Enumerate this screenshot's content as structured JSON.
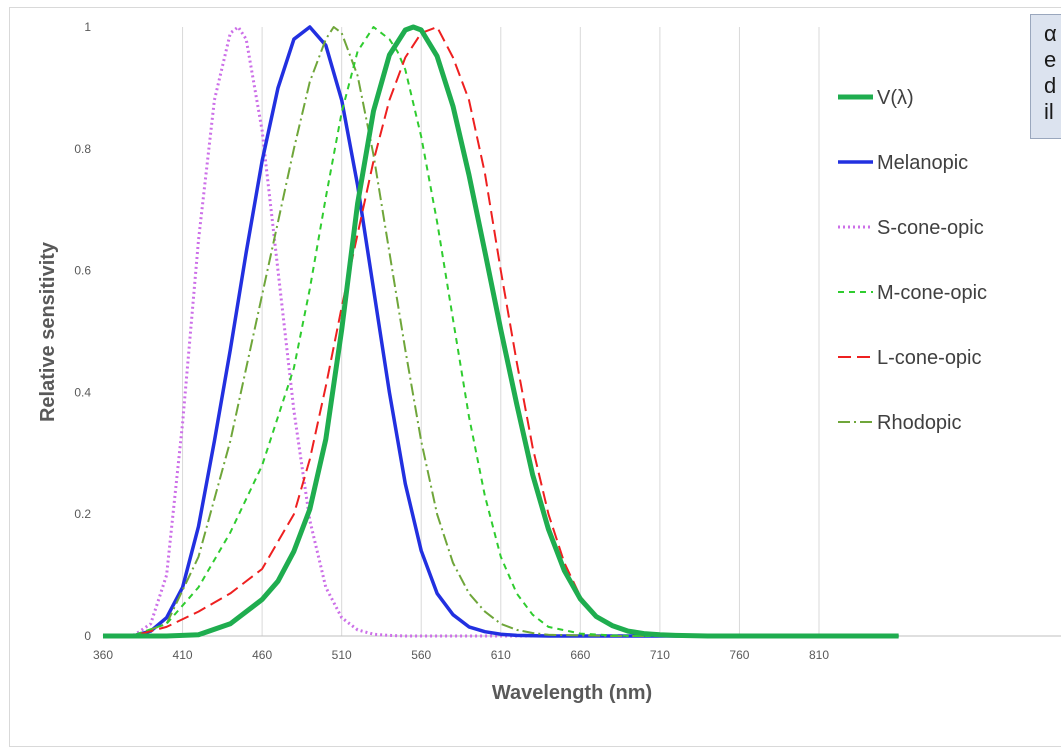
{
  "note_text": [
    "α",
    "e",
    "d",
    "il"
  ],
  "chart_data": {
    "type": "line",
    "xlabel": "Wavelength (nm)",
    "ylabel": "Relative sensitivity",
    "xlim": [
      360,
      860
    ],
    "ylim": [
      0,
      1
    ],
    "x_ticks": [
      360,
      410,
      460,
      510,
      560,
      610,
      660,
      710,
      760,
      810
    ],
    "y_ticks": [
      0,
      0.2,
      0.4,
      0.6,
      0.8,
      1
    ],
    "y_tick_labels": [
      "0",
      "0.2",
      "0.4",
      "0.6",
      "0.8",
      "1"
    ],
    "grid": "vertical",
    "legend_position": "right",
    "series": [
      {
        "name": "V(λ)",
        "color": "#1fad4f",
        "style": "solid-thick",
        "x": [
          360,
          380,
          400,
          420,
          440,
          460,
          470,
          480,
          490,
          500,
          510,
          520,
          530,
          540,
          550,
          555,
          560,
          570,
          580,
          590,
          600,
          610,
          620,
          630,
          640,
          650,
          660,
          670,
          680,
          690,
          700,
          710,
          720,
          740,
          760,
          780,
          860
        ],
        "y": [
          0,
          0,
          0,
          0.002,
          0.02,
          0.06,
          0.09,
          0.139,
          0.208,
          0.323,
          0.503,
          0.71,
          0.862,
          0.954,
          0.995,
          1.0,
          0.995,
          0.952,
          0.87,
          0.757,
          0.631,
          0.503,
          0.381,
          0.265,
          0.175,
          0.107,
          0.061,
          0.032,
          0.017,
          0.008,
          0.004,
          0.002,
          0.001,
          0,
          0,
          0,
          0
        ]
      },
      {
        "name": "Melanopic",
        "color": "#2230e0",
        "style": "solid",
        "x": [
          360,
          380,
          390,
          400,
          410,
          420,
          430,
          440,
          450,
          460,
          470,
          480,
          490,
          500,
          510,
          520,
          530,
          540,
          550,
          560,
          570,
          580,
          590,
          600,
          610,
          620,
          640,
          660,
          700,
          860
        ],
        "y": [
          0,
          0.001,
          0.008,
          0.03,
          0.08,
          0.18,
          0.32,
          0.47,
          0.63,
          0.78,
          0.9,
          0.98,
          1.0,
          0.97,
          0.88,
          0.74,
          0.57,
          0.4,
          0.25,
          0.14,
          0.07,
          0.035,
          0.015,
          0.007,
          0.003,
          0.001,
          0,
          0,
          0,
          0
        ]
      },
      {
        "name": "S-cone-opic",
        "color": "#cc6fe8",
        "style": "dotted",
        "x": [
          360,
          380,
          390,
          400,
          410,
          420,
          430,
          440,
          445,
          450,
          460,
          470,
          480,
          490,
          500,
          510,
          520,
          530,
          540,
          550,
          560,
          860
        ],
        "y": [
          0,
          0.002,
          0.02,
          0.1,
          0.35,
          0.65,
          0.88,
          0.99,
          1.0,
          0.98,
          0.83,
          0.6,
          0.37,
          0.19,
          0.08,
          0.03,
          0.01,
          0.003,
          0.001,
          0,
          0,
          0
        ]
      },
      {
        "name": "M-cone-opic",
        "color": "#2fcc2f",
        "style": "dashed",
        "x": [
          360,
          380,
          400,
          420,
          440,
          460,
          480,
          490,
          500,
          510,
          520,
          530,
          540,
          545,
          550,
          560,
          570,
          580,
          590,
          600,
          610,
          620,
          630,
          640,
          660,
          680,
          700,
          860
        ],
        "y": [
          0,
          0.002,
          0.02,
          0.08,
          0.17,
          0.28,
          0.44,
          0.57,
          0.72,
          0.86,
          0.96,
          1.0,
          0.98,
          0.96,
          0.93,
          0.82,
          0.68,
          0.52,
          0.36,
          0.23,
          0.13,
          0.07,
          0.035,
          0.015,
          0.004,
          0.001,
          0,
          0
        ]
      },
      {
        "name": "L-cone-opic",
        "color": "#ee2020",
        "style": "long-dashed",
        "x": [
          360,
          380,
          400,
          420,
          440,
          460,
          480,
          490,
          500,
          510,
          520,
          530,
          540,
          550,
          560,
          570,
          580,
          590,
          600,
          610,
          620,
          630,
          640,
          650,
          660,
          670,
          680,
          700,
          720,
          760,
          780
        ],
        "y": [
          0,
          0.001,
          0.015,
          0.04,
          0.07,
          0.11,
          0.2,
          0.29,
          0.41,
          0.54,
          0.66,
          0.78,
          0.88,
          0.95,
          0.99,
          1.0,
          0.95,
          0.88,
          0.76,
          0.6,
          0.45,
          0.31,
          0.2,
          0.12,
          0.065,
          0.033,
          0.016,
          0.004,
          0.001,
          0,
          0
        ]
      },
      {
        "name": "Rhodopic",
        "color": "#6fa63a",
        "style": "dash-dot",
        "x": [
          360,
          380,
          400,
          420,
          440,
          460,
          470,
          480,
          490,
          500,
          505,
          510,
          520,
          530,
          540,
          550,
          560,
          570,
          580,
          590,
          600,
          610,
          620,
          630,
          640,
          660,
          680,
          860
        ],
        "y": [
          0,
          0.001,
          0.02,
          0.13,
          0.32,
          0.56,
          0.68,
          0.8,
          0.91,
          0.98,
          1.0,
          0.99,
          0.92,
          0.79,
          0.63,
          0.47,
          0.32,
          0.2,
          0.12,
          0.07,
          0.04,
          0.02,
          0.01,
          0.005,
          0.002,
          0.001,
          0,
          0
        ]
      }
    ]
  }
}
